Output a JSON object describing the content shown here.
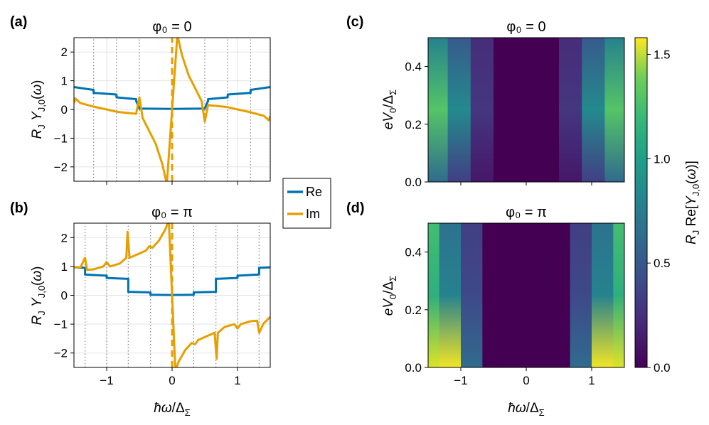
{
  "chart_data": [
    {
      "id": "a",
      "type": "line",
      "panel_label": "(a)",
      "title": "φ₀ = 0",
      "xlabel": "",
      "ylabel": "R_J Y_J,0(ω)",
      "xlim": [
        -1.5,
        1.5
      ],
      "ylim": [
        -2.5,
        2.5
      ],
      "xticks": [
        -1,
        0,
        1
      ],
      "yticks": [
        -2,
        -1,
        0,
        1,
        2
      ],
      "ytick_labels": [
        "−2",
        "−1",
        "0",
        "1",
        "2"
      ],
      "dotted_vlines": [
        -1.5,
        -1.2,
        -0.85,
        -0.5,
        0.5,
        0.85,
        1.2,
        1.5
      ],
      "dashed_vline": 0,
      "series": [
        {
          "name": "Re",
          "color": "#0072b2",
          "x": [
            -1.5,
            -1.2,
            -1.2,
            -0.85,
            -0.85,
            -0.55,
            -0.55,
            -0.5,
            -0.5,
            0.0,
            0.5,
            0.5,
            0.55,
            0.55,
            0.85,
            0.85,
            1.2,
            1.2,
            1.5
          ],
          "y": [
            0.78,
            0.68,
            0.58,
            0.52,
            0.42,
            0.36,
            0.3,
            0.04,
            0.03,
            0.02,
            0.03,
            0.04,
            0.3,
            0.36,
            0.42,
            0.52,
            0.58,
            0.68,
            0.78
          ]
        },
        {
          "name": "Im",
          "color": "#e69f00",
          "x": [
            -1.5,
            -1.48,
            -1.4,
            -1.2,
            -1.0,
            -0.85,
            -0.7,
            -0.55,
            -0.5,
            -0.45,
            -0.35,
            -0.25,
            -0.15,
            -0.08,
            0.08,
            0.15,
            0.25,
            0.35,
            0.45,
            0.5,
            0.55,
            0.7,
            0.85,
            1.0,
            1.2,
            1.4,
            1.48,
            1.5
          ],
          "y": [
            0.22,
            0.38,
            0.22,
            0.1,
            0.0,
            -0.08,
            -0.12,
            -0.15,
            0.42,
            -0.3,
            -0.75,
            -1.2,
            -1.9,
            -2.6,
            2.6,
            1.9,
            1.2,
            0.75,
            0.3,
            -0.42,
            0.15,
            0.12,
            0.08,
            0.0,
            -0.1,
            -0.22,
            -0.38,
            -0.22
          ]
        }
      ]
    },
    {
      "id": "b",
      "type": "line",
      "panel_label": "(b)",
      "title": "φ₀ = π",
      "xlabel": "ħω/Δ_Σ",
      "ylabel": "R_J Y_J,0(ω)",
      "xlim": [
        -1.5,
        1.5
      ],
      "ylim": [
        -2.5,
        2.5
      ],
      "xticks": [
        -1,
        0,
        1
      ],
      "xtick_labels": [
        "−1",
        "0",
        "1"
      ],
      "yticks": [
        -2,
        -1,
        0,
        1,
        2
      ],
      "ytick_labels": [
        "−2",
        "−1",
        "0",
        "1",
        "2"
      ],
      "dotted_vlines": [
        -1.33,
        -1.0,
        -0.67,
        -0.33,
        0.33,
        0.67,
        1.0,
        1.33
      ],
      "dashed_vline": 0,
      "series": [
        {
          "name": "Re",
          "color": "#0072b2",
          "x": [
            -1.5,
            -1.33,
            -1.33,
            -1.0,
            -1.0,
            -0.67,
            -0.67,
            -0.33,
            -0.33,
            0.0,
            0.33,
            0.33,
            0.67,
            0.67,
            1.0,
            1.0,
            1.33,
            1.33,
            1.5
          ],
          "y": [
            0.97,
            0.95,
            0.72,
            0.68,
            0.6,
            0.57,
            0.12,
            0.1,
            0.02,
            0.01,
            0.02,
            0.1,
            0.12,
            0.57,
            0.6,
            0.68,
            0.72,
            0.95,
            0.97
          ]
        },
        {
          "name": "Im",
          "color": "#e69f00",
          "x": [
            -1.5,
            -1.4,
            -1.33,
            -1.3,
            -1.2,
            -1.05,
            -1.0,
            -0.95,
            -0.8,
            -0.7,
            -0.68,
            -0.65,
            -0.55,
            -0.4,
            -0.35,
            -0.3,
            -0.2,
            -0.1,
            -0.05,
            0.05,
            0.1,
            0.2,
            0.3,
            0.35,
            0.4,
            0.55,
            0.65,
            0.68,
            0.7,
            0.8,
            0.95,
            1.0,
            1.05,
            1.2,
            1.3,
            1.33,
            1.4,
            1.5
          ],
          "y": [
            0.97,
            0.97,
            1.3,
            0.88,
            0.9,
            1.0,
            1.15,
            1.0,
            1.1,
            1.3,
            2.2,
            1.3,
            1.4,
            1.55,
            1.7,
            1.65,
            1.9,
            2.3,
            2.6,
            -2.6,
            -2.3,
            -1.9,
            -1.65,
            -1.7,
            -1.55,
            -1.4,
            -1.3,
            -2.2,
            -1.3,
            -1.1,
            -1.0,
            -1.15,
            -1.0,
            -0.9,
            -0.88,
            -1.3,
            -0.97,
            -0.75
          ]
        }
      ]
    },
    {
      "id": "c",
      "type": "heatmap",
      "panel_label": "(c)",
      "title": "φ₀ = 0",
      "xlabel": "",
      "ylabel": "eV₀/Δ_Σ",
      "xlim": [
        -1.5,
        1.5
      ],
      "ylim": [
        0.0,
        0.5
      ],
      "xticks": [
        -1,
        0,
        1
      ],
      "yticks": [
        0.0,
        0.2,
        0.4
      ],
      "ytick_labels": [
        "0.0",
        "0.2",
        "0.4"
      ],
      "band_edges": [
        -1.5,
        -1.2,
        -0.85,
        -0.5,
        0.5,
        0.85,
        1.2,
        1.5
      ],
      "band_bottom": [
        0.55,
        0.3,
        0.1,
        0.0,
        0.1,
        0.3,
        0.55
      ],
      "band_top": [
        0.7,
        0.45,
        0.2,
        0.0,
        0.2,
        0.45,
        0.7
      ],
      "band_mid": [
        1.15,
        0.75,
        0.25,
        0.0,
        0.25,
        0.75,
        1.15
      ]
    },
    {
      "id": "d",
      "type": "heatmap",
      "panel_label": "(d)",
      "title": "φ₀ = π",
      "xlabel": "ħω/Δ_Σ",
      "ylabel": "eV₀/Δ_Σ",
      "xlim": [
        -1.5,
        1.5
      ],
      "ylim": [
        0.0,
        0.5
      ],
      "xticks": [
        -1,
        0,
        1
      ],
      "xtick_labels": [
        "−1",
        "0",
        "1"
      ],
      "yticks": [
        0.0,
        0.2,
        0.4
      ],
      "ytick_labels": [
        "0.0",
        "0.2",
        "0.4"
      ],
      "band_edges": [
        -1.5,
        -1.33,
        -1.0,
        -0.67,
        0.67,
        1.0,
        1.33,
        1.5
      ],
      "band_bottom": [
        1.5,
        1.55,
        0.55,
        0.0,
        0.55,
        1.55,
        1.5
      ],
      "band_top": [
        1.1,
        0.6,
        0.3,
        0.0,
        0.3,
        0.6,
        1.1
      ],
      "band_mid": [
        1.0,
        0.7,
        0.35,
        0.0,
        0.35,
        0.7,
        1.0
      ]
    },
    {
      "id": "colorbar",
      "type": "colorbar",
      "label": "R_J Re[Y_J,0(ω)]",
      "range": [
        0.0,
        1.58
      ],
      "ticks": [
        0.0,
        0.5,
        1.0,
        1.5
      ],
      "tick_labels": [
        "0.0",
        "0.5",
        "1.0",
        "1.5"
      ],
      "colormap": "viridis"
    }
  ],
  "legend": {
    "items": [
      {
        "label": "Re",
        "color": "#0072b2"
      },
      {
        "label": "Im",
        "color": "#e69f00"
      }
    ]
  }
}
